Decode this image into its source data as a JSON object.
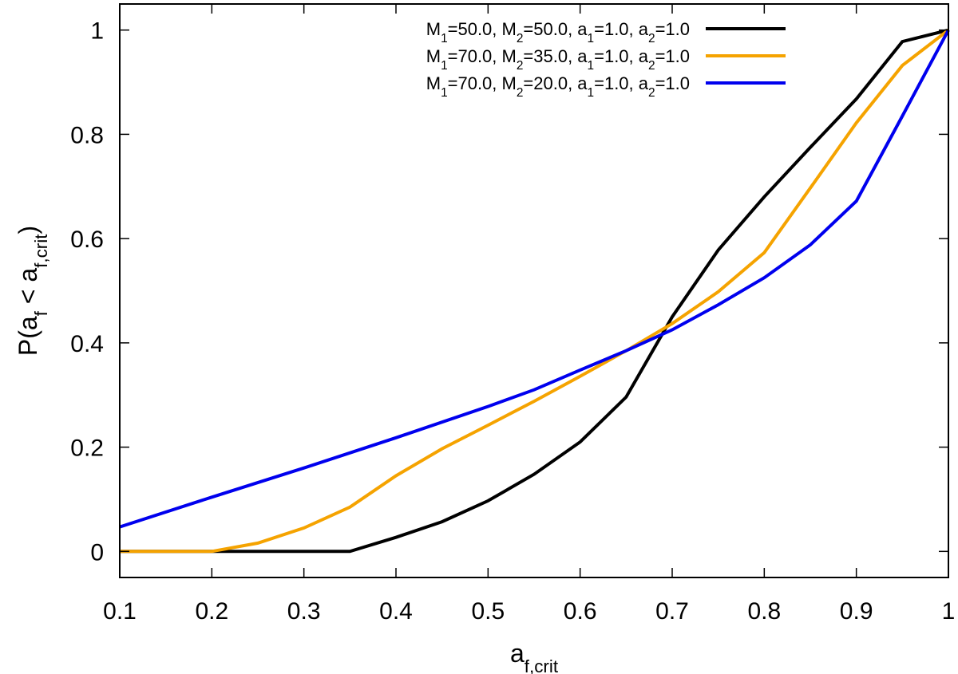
{
  "chart_data": {
    "type": "line",
    "xlabel": "a_{f,crit}",
    "ylabel": "P(a_f < a_{f,crit})",
    "xlim": [
      0.1,
      1.0
    ],
    "ylim": [
      -0.05,
      1.05
    ],
    "x_ticks": [
      "0.1",
      "0.2",
      "0.3",
      "0.4",
      "0.5",
      "0.6",
      "0.7",
      "0.8",
      "0.9",
      "1"
    ],
    "y_ticks": [
      "0",
      "0.2",
      "0.4",
      "0.6",
      "0.8",
      "1"
    ],
    "legend_position": "top-right",
    "grid": false,
    "series": [
      {
        "name": "M_1=50.0, M_2=50.0, a_1=1.0, a_2=1.0",
        "color": "#000000",
        "x": [
          0.1,
          0.2,
          0.25,
          0.3,
          0.35,
          0.4,
          0.45,
          0.5,
          0.55,
          0.6,
          0.65,
          0.7,
          0.75,
          0.8,
          0.85,
          0.9,
          0.95,
          1.0
        ],
        "y": [
          0.0,
          0.0,
          0.0,
          0.0,
          0.0,
          0.027,
          0.057,
          0.097,
          0.148,
          0.21,
          0.296,
          0.45,
          0.578,
          0.68,
          0.775,
          0.868,
          0.978,
          1.0
        ]
      },
      {
        "name": "M_1=70.0, M_2=35.0, a_1=1.0, a_2=1.0",
        "color": "#f5a300",
        "x": [
          0.1,
          0.2,
          0.25,
          0.3,
          0.35,
          0.4,
          0.45,
          0.5,
          0.55,
          0.6,
          0.65,
          0.7,
          0.75,
          0.8,
          0.85,
          0.9,
          0.95,
          1.0
        ],
        "y": [
          0.0,
          0.0,
          0.016,
          0.045,
          0.085,
          0.145,
          0.197,
          0.242,
          0.288,
          0.336,
          0.385,
          0.437,
          0.498,
          0.573,
          0.697,
          0.822,
          0.932,
          1.0
        ]
      },
      {
        "name": "M_1=70.0, M_2=20.0, a_1=1.0, a_2=1.0",
        "color": "#0000ee",
        "x": [
          0.1,
          0.2,
          0.3,
          0.4,
          0.5,
          0.55,
          0.6,
          0.65,
          0.7,
          0.75,
          0.8,
          0.85,
          0.9,
          0.95,
          1.0
        ],
        "y": [
          0.047,
          0.104,
          0.16,
          0.218,
          0.278,
          0.31,
          0.348,
          0.385,
          0.425,
          0.473,
          0.525,
          0.588,
          0.672,
          0.835,
          1.0
        ]
      }
    ]
  }
}
